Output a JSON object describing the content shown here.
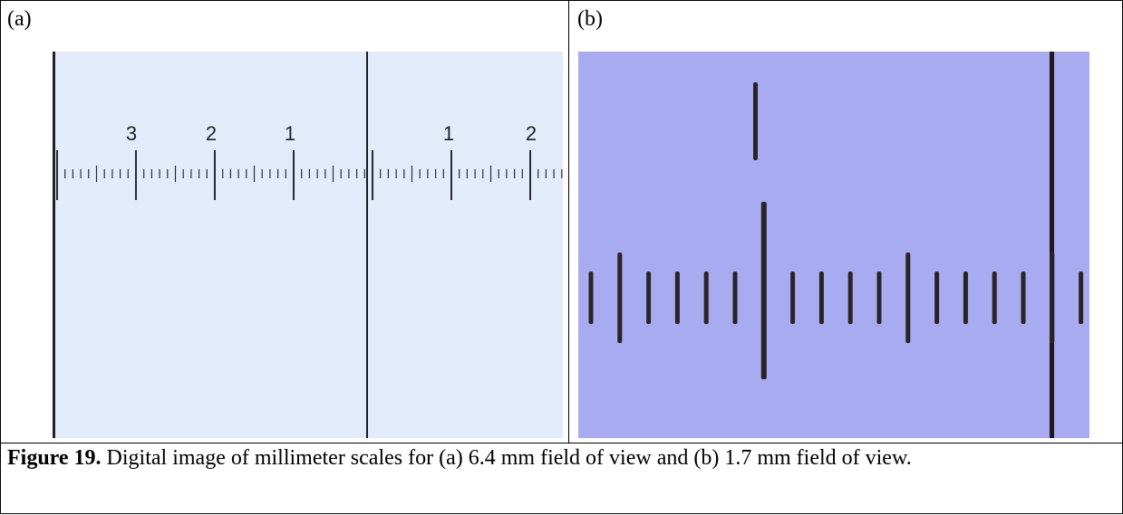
{
  "panel_a": {
    "label": "(a)",
    "scale_numbers": [
      "3",
      "2",
      "1",
      "1",
      "2"
    ]
  },
  "panel_b": {
    "label": "(b)"
  },
  "caption": {
    "figure": "Figure 19",
    "separator": ".",
    "text": " Digital image of millimeter scales for (a) 6.4  mm field of view and (b) 1.7 mm field of view."
  },
  "colors": {
    "panel_a_background": "#dfe9f7",
    "panel_b_background": "#a4a7ee",
    "tick_color": "#2a2a35"
  }
}
